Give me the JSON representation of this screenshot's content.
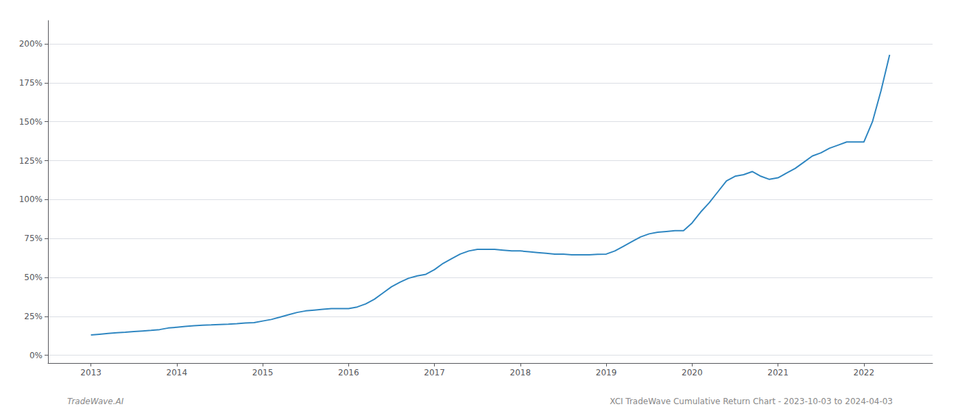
{
  "chart_data": {
    "type": "line",
    "annotations": [
      "TradeWave.AI",
      "XCI TradeWave Cumulative Return Chart - 2023-10-03 to 2024-04-03"
    ],
    "color": "#2E86C1",
    "grid": true,
    "xlim": [
      2012.5,
      2022.8
    ],
    "xticks": [
      2013,
      2014,
      2015,
      2016,
      2017,
      2018,
      2019,
      2020,
      2021,
      2022
    ],
    "ylim": [
      -5,
      215
    ],
    "yticks": [
      {
        "value": 0,
        "label": "0%"
      },
      {
        "value": 25,
        "label": "25%"
      },
      {
        "value": 50,
        "label": "50%"
      },
      {
        "value": 75,
        "label": "75%"
      },
      {
        "value": 100,
        "label": "100%"
      },
      {
        "value": 125,
        "label": "125%"
      },
      {
        "value": 150,
        "label": "150%"
      },
      {
        "value": 175,
        "label": "175%"
      },
      {
        "value": 200,
        "label": "200%"
      }
    ],
    "x": [
      2013.0,
      2013.1,
      2013.2,
      2013.3,
      2013.4,
      2013.5,
      2013.6,
      2013.7,
      2013.8,
      2013.9,
      2014.0,
      2014.1,
      2014.2,
      2014.3,
      2014.4,
      2014.5,
      2014.6,
      2014.7,
      2014.8,
      2014.9,
      2015.0,
      2015.1,
      2015.2,
      2015.3,
      2015.4,
      2015.5,
      2015.6,
      2015.7,
      2015.8,
      2015.9,
      2016.0,
      2016.1,
      2016.2,
      2016.3,
      2016.4,
      2016.5,
      2016.6,
      2016.7,
      2016.8,
      2016.9,
      2017.0,
      2017.1,
      2017.2,
      2017.3,
      2017.4,
      2017.5,
      2017.6,
      2017.7,
      2017.8,
      2017.9,
      2018.0,
      2018.1,
      2018.2,
      2018.3,
      2018.4,
      2018.5,
      2018.6,
      2018.7,
      2018.8,
      2018.9,
      2019.0,
      2019.1,
      2019.2,
      2019.3,
      2019.4,
      2019.5,
      2019.6,
      2019.7,
      2019.8,
      2019.9,
      2020.0,
      2020.1,
      2020.2,
      2020.3,
      2020.4,
      2020.5,
      2020.6,
      2020.7,
      2020.8,
      2020.9,
      2021.0,
      2021.1,
      2021.2,
      2021.3,
      2021.4,
      2021.5,
      2021.6,
      2021.7,
      2021.8,
      2021.9,
      2022.0,
      2022.1,
      2022.2,
      2022.3
    ],
    "values": [
      13,
      13.5,
      14,
      14.5,
      14.8,
      15.2,
      15.6,
      16,
      16.5,
      17.5,
      18,
      18.5,
      19,
      19.3,
      19.5,
      19.8,
      20,
      20.3,
      20.7,
      21,
      22,
      23,
      24.5,
      26,
      27.5,
      28.5,
      29,
      29.5,
      30,
      30,
      30,
      31,
      33,
      36,
      40,
      44,
      47,
      49.5,
      51,
      52,
      55,
      59,
      62,
      65,
      67,
      68,
      68,
      68,
      67.5,
      67,
      67,
      66.5,
      66,
      65.5,
      65,
      65,
      64.5,
      64.5,
      64.5,
      64.8,
      65,
      67,
      70,
      73,
      76,
      78,
      79,
      79.5,
      80,
      80,
      85,
      92,
      98,
      105,
      112,
      115,
      116,
      118,
      115,
      113,
      114,
      117,
      120,
      124,
      128,
      130,
      133,
      135,
      137,
      137,
      137,
      150,
      170,
      193
    ]
  }
}
